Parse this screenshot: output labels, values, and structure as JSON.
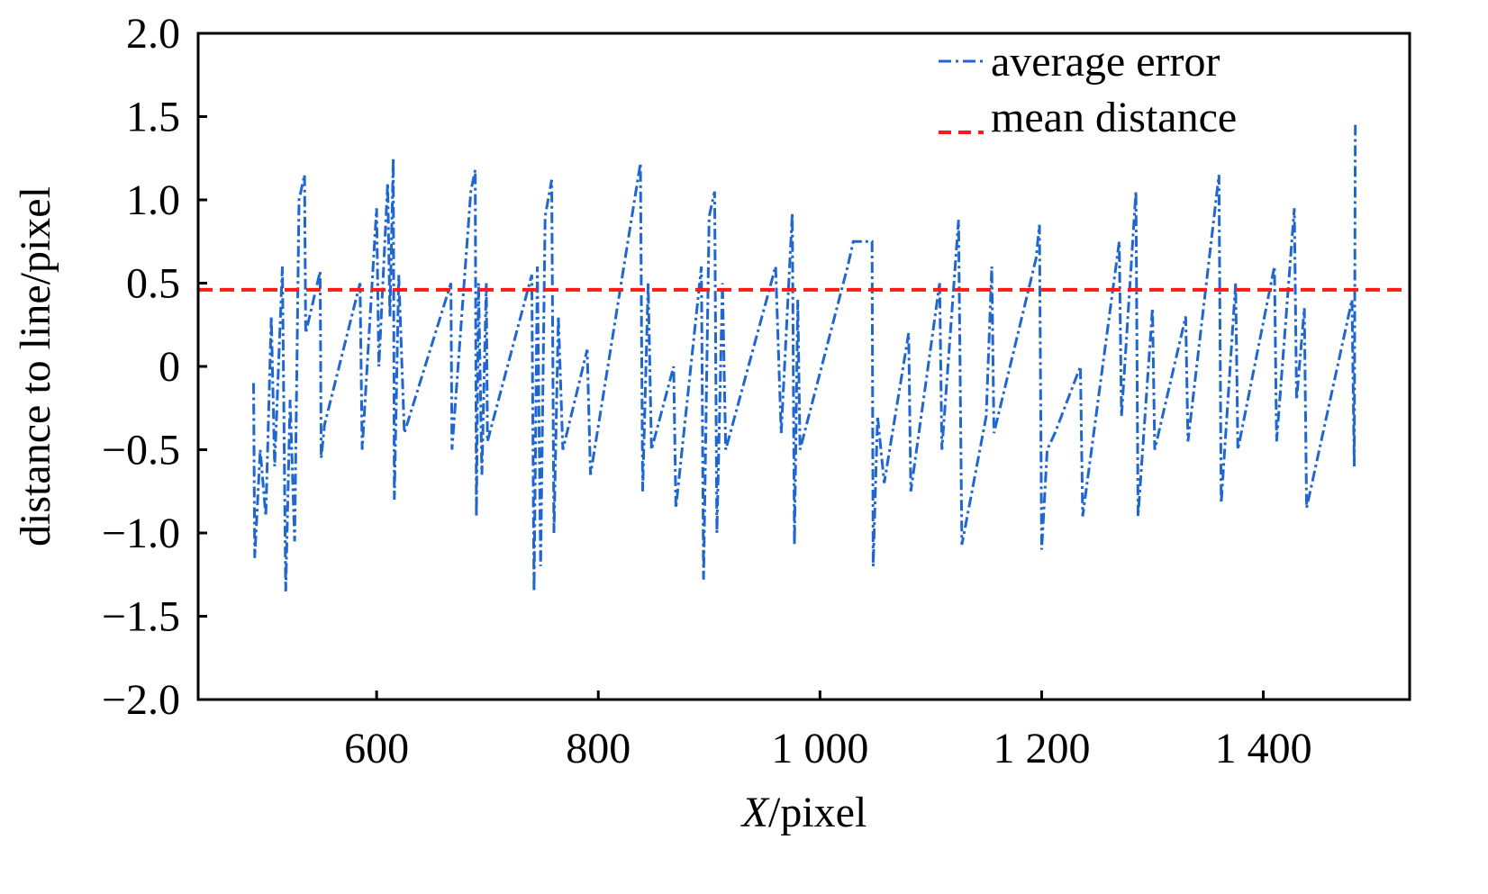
{
  "chart_data": {
    "type": "line",
    "xlabel_italic": "X",
    "xlabel_rest": "/pixel",
    "ylabel": "distance to line/pixel",
    "xlim": [
      439,
      1532
    ],
    "ylim": [
      -2.0,
      2.0
    ],
    "x_ticks": [
      600,
      800,
      1000,
      1200,
      1400
    ],
    "x_tick_labels": [
      "600",
      "800",
      "1 000",
      "1 200",
      "1 400"
    ],
    "y_ticks": [
      2.0,
      1.5,
      1.0,
      0.5,
      0,
      -0.5,
      -1.0,
      -1.5,
      -2.0
    ],
    "y_tick_labels": [
      "2.0",
      "1.5",
      "1.0",
      "0.5",
      "0",
      "−0.5",
      "−1.0",
      "−1.5",
      "−2.0"
    ],
    "grid": false,
    "legend_placement": "top-right",
    "series": [
      {
        "name": "average error",
        "color": "#1f66d1",
        "style": "dash-dot",
        "x": [
          489,
          490,
          495,
          500,
          505,
          508,
          515,
          518,
          522,
          526,
          530,
          535,
          536,
          549,
          550,
          553,
          585,
          587,
          600,
          602,
          610,
          612,
          615,
          616,
          620,
          625,
          667,
          668,
          685,
          689,
          690,
          692,
          695,
          699,
          700,
          740,
          742,
          745,
          748,
          752,
          758,
          760,
          764,
          768,
          790,
          793,
          838,
          840,
          845,
          848,
          868,
          870,
          893,
          895,
          900,
          905,
          907,
          912,
          915,
          960,
          965,
          975,
          977,
          980,
          982,
          1025,
          1030,
          1047,
          1048,
          1052,
          1058,
          1080,
          1082,
          1108,
          1110,
          1125,
          1128,
          1150,
          1155,
          1157,
          1195,
          1198,
          1200,
          1205,
          1212,
          1235,
          1237,
          1270,
          1272,
          1285,
          1287,
          1300,
          1302,
          1330,
          1332,
          1360,
          1362,
          1375,
          1377,
          1410,
          1412,
          1428,
          1430,
          1437,
          1439,
          1480,
          1482,
          1483
        ],
        "y": [
          -0.1,
          -1.15,
          -0.5,
          -0.9,
          0.3,
          -0.6,
          0.6,
          -1.35,
          -0.2,
          -1.05,
          1.0,
          1.15,
          0.2,
          0.57,
          -0.55,
          -0.35,
          0.5,
          -0.5,
          0.95,
          0.0,
          1.1,
          0.3,
          1.25,
          -0.8,
          0.55,
          -0.4,
          0.5,
          -0.5,
          1.05,
          1.18,
          -0.9,
          0.5,
          -0.65,
          0.5,
          -0.45,
          0.55,
          -1.35,
          0.6,
          -1.2,
          0.9,
          1.12,
          -1.0,
          0.3,
          -0.5,
          0.1,
          -0.65,
          1.22,
          -0.75,
          0.5,
          -0.5,
          0.0,
          -0.85,
          0.6,
          -1.28,
          0.9,
          1.05,
          -1.0,
          0.5,
          -0.5,
          0.6,
          -0.4,
          0.92,
          -1.07,
          0.4,
          -0.5,
          0.6,
          0.75,
          0.75,
          -1.2,
          -0.3,
          -0.7,
          0.2,
          -0.75,
          0.5,
          -0.5,
          0.88,
          -1.07,
          -0.3,
          0.6,
          -0.4,
          0.65,
          0.85,
          -1.1,
          -0.5,
          -0.4,
          0.0,
          -0.9,
          0.75,
          -0.3,
          1.05,
          -0.9,
          0.35,
          -0.5,
          0.3,
          -0.45,
          1.15,
          -0.82,
          0.5,
          -0.5,
          0.6,
          -0.45,
          0.95,
          -0.2,
          0.35,
          -0.85,
          0.4,
          -0.6,
          1.45
        ]
      },
      {
        "name": "mean distance",
        "color": "#ff1a1a",
        "style": "dashed",
        "y_constant": 0.46
      }
    ]
  }
}
